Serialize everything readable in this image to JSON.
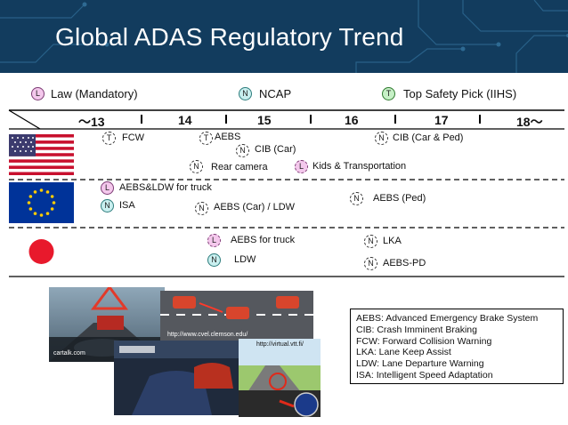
{
  "title": "Global ADAS Regulatory Trend",
  "legend": [
    {
      "code": "L",
      "label": "Law (Mandatory)"
    },
    {
      "code": "N",
      "label": "NCAP"
    },
    {
      "code": "T",
      "label": "Top Safety Pick (IIHS)"
    }
  ],
  "years": [
    "～13",
    "14",
    "15",
    "16",
    "17",
    "18～"
  ],
  "regions": {
    "us": {
      "items": [
        {
          "badge": "T",
          "label": "FCW"
        },
        {
          "badge": "T",
          "label": "AEBS"
        },
        {
          "badge": "N",
          "label": "CIB (Car)"
        },
        {
          "badge": "N",
          "label": "CIB (Car & Ped)"
        },
        {
          "badge": "N",
          "label": "Rear camera"
        },
        {
          "badge": "L",
          "label": "Kids & Transportation"
        }
      ]
    },
    "eu": {
      "items": [
        {
          "badge": "L",
          "label": "AEBS&LDW for truck"
        },
        {
          "badge": "N",
          "label": "ISA"
        },
        {
          "badge": "N",
          "label": "AEBS (Car) / LDW"
        },
        {
          "badge": "N",
          "label": "AEBS (Ped)"
        }
      ]
    },
    "jp": {
      "items": [
        {
          "badge": "L",
          "label": "AEBS for truck"
        },
        {
          "badge": "N",
          "label": "LDW"
        },
        {
          "badge": "N",
          "label": "LKA"
        },
        {
          "badge": "N",
          "label": "AEBS-PD"
        }
      ]
    }
  },
  "photos": {
    "p1_source": "cartalk.com",
    "p2_source": "http://www.cvel.clemson.edu/",
    "p4_source": "http://virtual.vtt.fi/"
  },
  "glossary": [
    "AEBS: Advanced Emergency Brake System",
    "CIB: Crash Imminent Braking",
    "FCW:  Forward Collision Warning",
    "LKA: Lane Keep Assist",
    "LDW: Lane Departure Warning",
    "ISA:  Intelligent Speed Adaptation"
  ],
  "colors": {
    "header_bg": "#123c5e",
    "law_badge": "#f4c8ec",
    "ncap_badge": "#c9efef",
    "tsp_badge": "#c6f0c6",
    "japan_red": "#e8192c"
  }
}
